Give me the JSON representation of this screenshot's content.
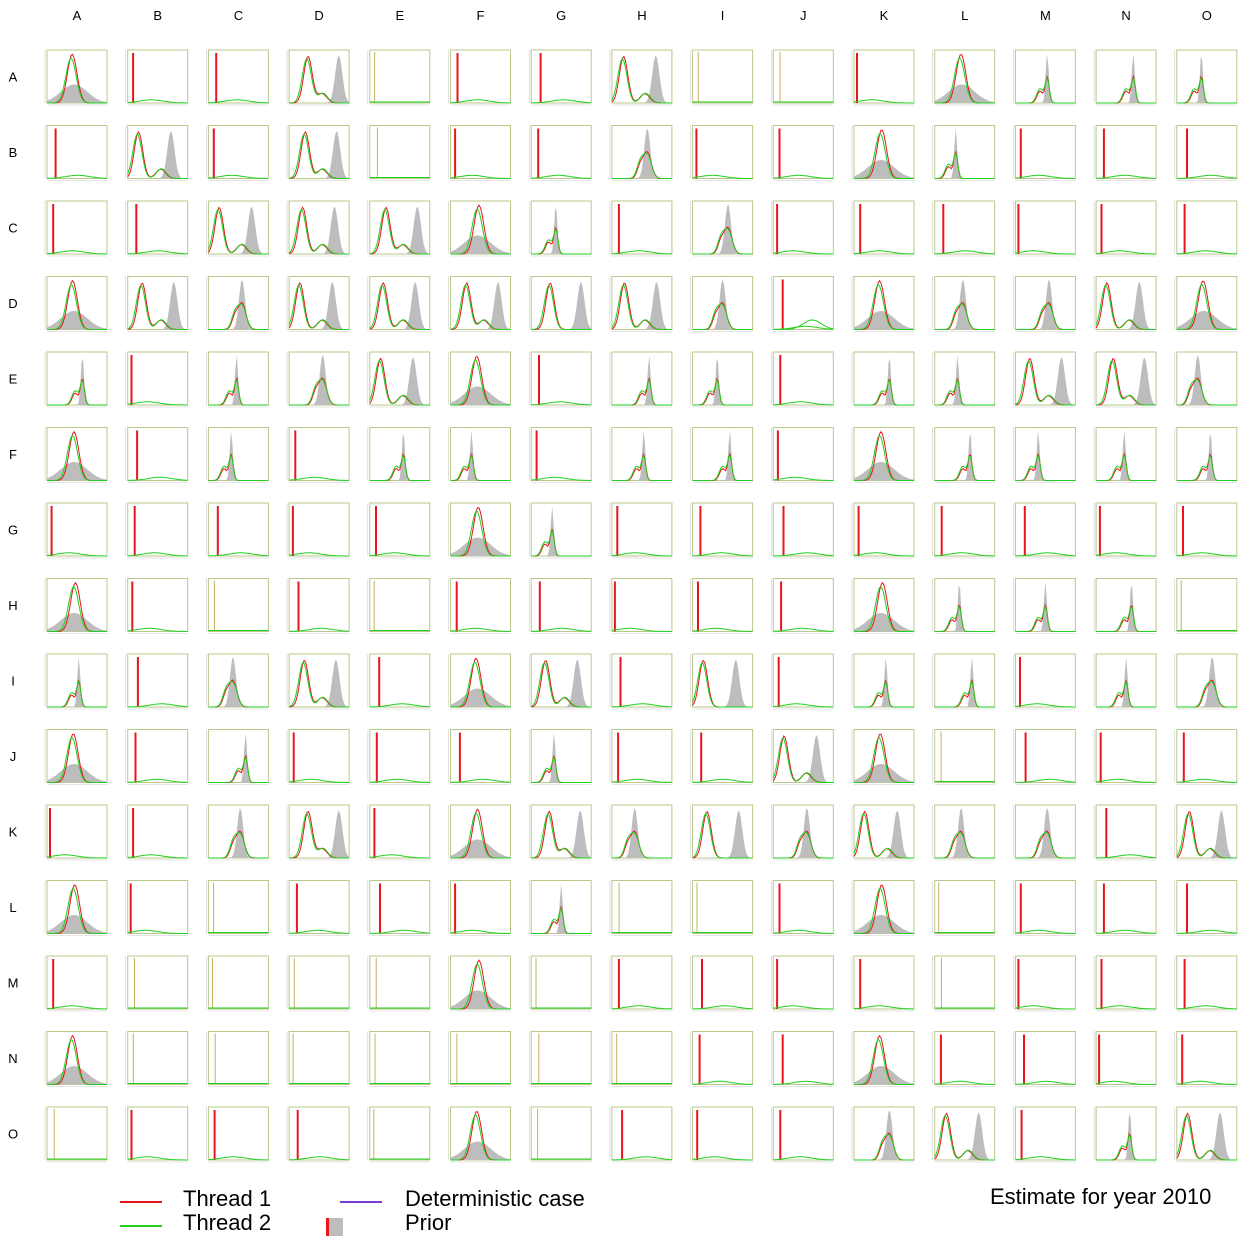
{
  "columns": [
    "A",
    "B",
    "C",
    "D",
    "E",
    "F",
    "G",
    "H",
    "I",
    "J",
    "K",
    "L",
    "M",
    "N",
    "O"
  ],
  "rows": [
    "A",
    "B",
    "C",
    "D",
    "E",
    "F",
    "G",
    "H",
    "I",
    "J",
    "K",
    "L",
    "M",
    "N",
    "O"
  ],
  "legend": {
    "thread1": "Thread 1",
    "thread2": "Thread 2",
    "deterministic": "Deterministic case",
    "prior": "Prior"
  },
  "caption": "Estimate for year 2010",
  "colors": {
    "thread1": "#e8161b",
    "thread2": "#1fd11f",
    "deterministic": "#7a3fd0",
    "prior": "#bdbdbd",
    "frame": "#b8c98a",
    "axis_text": "#333333"
  },
  "chart_data": {
    "type": "area",
    "title": "Estimate for year 2010",
    "description_of_grid": "15 x 15 matrix of posterior density panels, rows and columns labelled A-O",
    "series": [
      {
        "name": "Thread 1"
      },
      {
        "name": "Thread 2"
      },
      {
        "name": "Deterministic case"
      },
      {
        "name": "Prior"
      }
    ],
    "panel_shapes": [
      [
        "peak-prior-broad",
        "spike",
        "spike",
        "bimodal-prior-right",
        "flat",
        "spike",
        "spike",
        "bimodal-prior-right",
        "flat",
        "flat",
        "spike",
        "peak-prior-broad",
        "spike-prior",
        "spike-prior",
        "spike-prior"
      ],
      [
        "spike",
        "bimodal-prior-right",
        "spike",
        "bimodal-prior-right",
        "flat",
        "spike",
        "spike",
        "peak-prior-narrow",
        "spike",
        "spike",
        "peak-prior-broad",
        "spike-prior",
        "spike",
        "spike",
        "spike"
      ],
      [
        "spike",
        "spike",
        "bimodal-prior-right",
        "bimodal-prior-right",
        "bimodal-prior-right",
        "peak-prior-broad",
        "spike-prior",
        "spike",
        "peak-prior-narrow",
        "spike",
        "spike",
        "spike",
        "spike",
        "spike",
        "spike"
      ],
      [
        "peak-prior-broad",
        "bimodal-prior-right",
        "peak-prior-narrow",
        "bimodal-prior-right",
        "bimodal-prior-right",
        "bimodal-prior-right",
        "peak-prior-right",
        "bimodal-prior-right",
        "peak-prior-narrow",
        "spike-small-bump",
        "peak-prior-broad",
        "peak-prior-narrow",
        "peak-prior-narrow",
        "bimodal-prior-right",
        "peak-prior-broad"
      ],
      [
        "spike-prior",
        "spike",
        "spike-prior",
        "peak-prior-narrow",
        "bimodal-prior-right",
        "peak-prior-broad",
        "spike",
        "spike-prior",
        "spike-prior",
        "spike",
        "spike-prior",
        "spike-prior",
        "bimodal-prior-right",
        "bimodal-prior-right",
        "peak-prior-narrow"
      ],
      [
        "peak-prior-broad",
        "spike",
        "spike-prior",
        "spike",
        "spike-prior",
        "spike-prior",
        "spike",
        "spike-prior",
        "spike-prior",
        "spike",
        "peak-prior-broad",
        "spike-prior",
        "spike-prior",
        "spike-prior",
        "spike-prior"
      ],
      [
        "spike",
        "spike",
        "spike",
        "spike",
        "spike",
        "peak-prior-broad",
        "spike-prior",
        "spike",
        "spike",
        "spike",
        "spike",
        "spike",
        "spike",
        "spike",
        "spike"
      ],
      [
        "peak-prior-broad",
        "spike",
        "flat",
        "spike",
        "flat",
        "spike",
        "spike",
        "spike",
        "spike",
        "spike",
        "peak-prior-broad",
        "spike-prior",
        "spike-prior",
        "spike-prior",
        "flat"
      ],
      [
        "spike-prior",
        "spike",
        "peak-prior-narrow",
        "bimodal-prior-right",
        "spike",
        "peak-prior-broad",
        "bimodal-prior-right",
        "spike",
        "peak-prior-right",
        "spike",
        "spike-prior",
        "spike-prior",
        "spike",
        "spike-prior",
        "peak-prior-narrow"
      ],
      [
        "peak-prior-broad",
        "spike",
        "spike-prior",
        "spike",
        "spike",
        "spike",
        "spike-prior",
        "spike",
        "spike",
        "bimodal-prior-right",
        "peak-prior-broad",
        "flat",
        "spike",
        "spike",
        "spike"
      ],
      [
        "spike",
        "spike",
        "peak-prior-narrow",
        "bimodal-prior-right",
        "spike",
        "peak-prior-broad",
        "bimodal-prior-right",
        "peak-prior-narrow",
        "peak-prior-right",
        "peak-prior-narrow",
        "bimodal-prior-right",
        "peak-prior-narrow",
        "peak-prior-narrow",
        "spike",
        "bimodal-prior-right"
      ],
      [
        "peak-prior-broad",
        "spike",
        "flat",
        "spike",
        "spike",
        "spike",
        "spike-prior",
        "flat",
        "flat",
        "spike",
        "peak-prior-broad",
        "flat",
        "spike",
        "spike",
        "spike"
      ],
      [
        "spike",
        "flat",
        "flat",
        "flat",
        "flat",
        "peak-prior-broad",
        "flat",
        "spike",
        "spike",
        "spike",
        "spike",
        "flat",
        "spike",
        "spike",
        "spike"
      ],
      [
        "peak-prior-broad",
        "flat",
        "flat",
        "flat",
        "flat",
        "flat",
        "flat",
        "flat",
        "spike",
        "spike",
        "peak-prior-broad",
        "spike",
        "spike",
        "spike",
        "spike"
      ],
      [
        "flat",
        "spike",
        "spike",
        "spike",
        "flat",
        "peak-prior-broad",
        "flat",
        "spike",
        "spike",
        "spike",
        "peak-prior-narrow",
        "bimodal-prior-right",
        "spike",
        "spike-prior",
        "bimodal-prior-right"
      ]
    ]
  }
}
